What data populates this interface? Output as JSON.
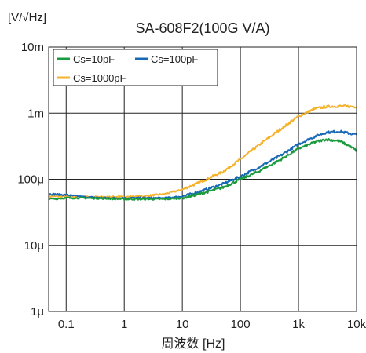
{
  "chart_data": {
    "type": "line",
    "title": "SA-608F2(100G V/A)",
    "ylabel": "[V/√Hz]",
    "xlabel": "周波数 [Hz]",
    "x_scale": "log",
    "y_scale": "log",
    "xlim": [
      0.05,
      10000
    ],
    "ylim": [
      1e-06,
      0.01
    ],
    "grid": true,
    "legend_position": "top-left",
    "x_ticks": [
      {
        "value": 0.1,
        "label": "0.1"
      },
      {
        "value": 1,
        "label": "1"
      },
      {
        "value": 10,
        "label": "10"
      },
      {
        "value": 100,
        "label": "100"
      },
      {
        "value": 1000,
        "label": "1k"
      },
      {
        "value": 10000,
        "label": "10k"
      }
    ],
    "y_ticks": [
      {
        "value": 1e-06,
        "label": "1μ"
      },
      {
        "value": 1e-05,
        "label": "10μ"
      },
      {
        "value": 0.0001,
        "label": "100μ"
      },
      {
        "value": 0.001,
        "label": "1m"
      },
      {
        "value": 0.01,
        "label": "10m"
      }
    ],
    "series": [
      {
        "name": "Cs=10pF",
        "color": "#1a9a3c",
        "x": [
          0.05,
          0.1,
          0.2,
          0.5,
          1,
          2,
          5,
          10,
          20,
          50,
          100,
          200,
          500,
          1000,
          2000,
          3000,
          5000,
          7000,
          10000
        ],
        "y": [
          5e-05,
          5.2e-05,
          5.2e-05,
          5.1e-05,
          5e-05,
          5e-05,
          5e-05,
          5.2e-05,
          6e-05,
          7.5e-05,
          0.0001,
          0.00013,
          0.0002,
          0.00029,
          0.00037,
          0.0004,
          0.00038,
          0.00033,
          0.00027
        ]
      },
      {
        "name": "Cs=100pF",
        "color": "#1769b5",
        "x": [
          0.05,
          0.1,
          0.2,
          0.5,
          1,
          2,
          5,
          10,
          20,
          50,
          100,
          200,
          500,
          1000,
          2000,
          3000,
          5000,
          7000,
          10000
        ],
        "y": [
          6e-05,
          5.8e-05,
          5.4e-05,
          5.2e-05,
          5.2e-05,
          5.2e-05,
          5.2e-05,
          5.5e-05,
          6.5e-05,
          8.5e-05,
          0.00011,
          0.00015,
          0.00023,
          0.00034,
          0.00045,
          0.00051,
          0.00053,
          0.0005,
          0.00047
        ]
      },
      {
        "name": "Cs=1000pF",
        "color": "#f5b22d",
        "x": [
          0.05,
          0.1,
          0.2,
          0.5,
          1,
          2,
          5,
          10,
          20,
          50,
          100,
          200,
          500,
          1000,
          2000,
          3000,
          5000,
          7000,
          10000
        ],
        "y": [
          5.5e-05,
          5.5e-05,
          5.4e-05,
          5.4e-05,
          5.4e-05,
          5.5e-05,
          6e-05,
          7e-05,
          9e-05,
          0.00013,
          0.0002,
          0.00032,
          0.00058,
          0.0009,
          0.00118,
          0.00125,
          0.00128,
          0.00127,
          0.00125
        ]
      }
    ]
  }
}
